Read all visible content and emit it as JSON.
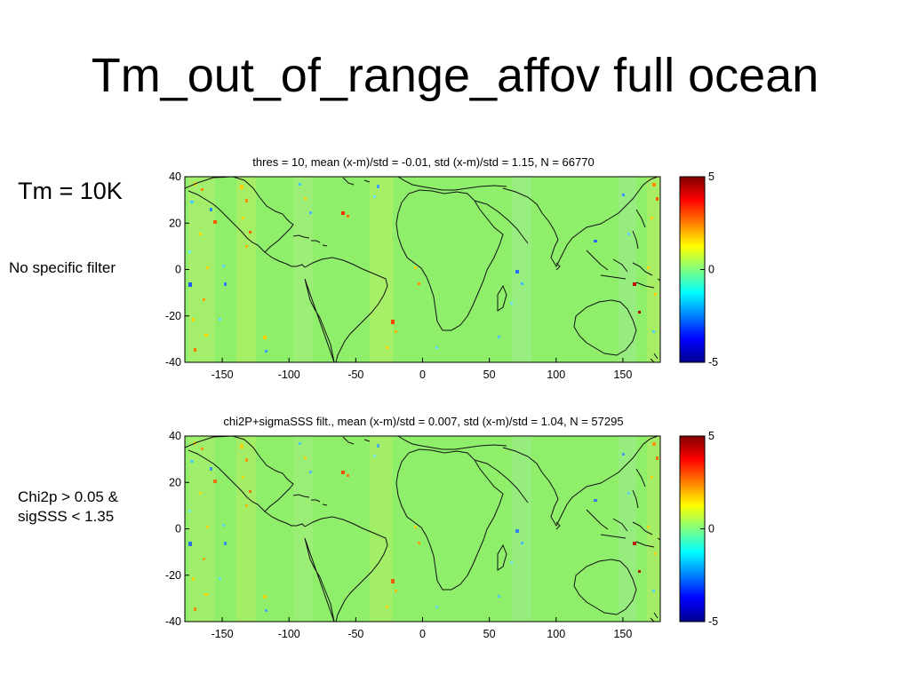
{
  "slide": {
    "title": "Tm_out_of_range_affov full ocean",
    "label_tm": "Tm = 10K",
    "label_filter": "No specific  filter",
    "label_chi2p": "Chi2p > 0.05 &",
    "label_sigsss": "sigSSS < 1.35"
  },
  "maps": [
    {
      "title": "thres = 10, mean (x-m)/std = -0.01, std (x-m)/std = 1.15, N = 66770",
      "x_ticks": [
        "-150",
        "-100",
        "-50",
        "0",
        "50",
        "100",
        "150"
      ],
      "y_ticks": [
        "40",
        "20",
        "0",
        "-20",
        "-40"
      ],
      "xlim": [
        -178,
        178
      ],
      "ylim": [
        -40,
        40
      ],
      "colorbar_ticks": [
        "5",
        "0",
        "-5"
      ],
      "clim": [
        -5,
        5
      ],
      "colormap": "jet",
      "background_color": "#8fee6a"
    },
    {
      "title": "chi2P+sigmaSSS filt., mean (x-m)/std = 0.007, std (x-m)/std = 1.04, N = 57295",
      "x_ticks": [
        "-150",
        "-100",
        "-50",
        "0",
        "50",
        "100",
        "150"
      ],
      "y_ticks": [
        "40",
        "20",
        "0",
        "-20",
        "-40"
      ],
      "xlim": [
        -178,
        178
      ],
      "ylim": [
        -40,
        40
      ],
      "colorbar_ticks": [
        "5",
        "0",
        "-5"
      ],
      "clim": [
        -5,
        5
      ],
      "colormap": "jet",
      "background_color": "#8fee6a"
    }
  ]
}
